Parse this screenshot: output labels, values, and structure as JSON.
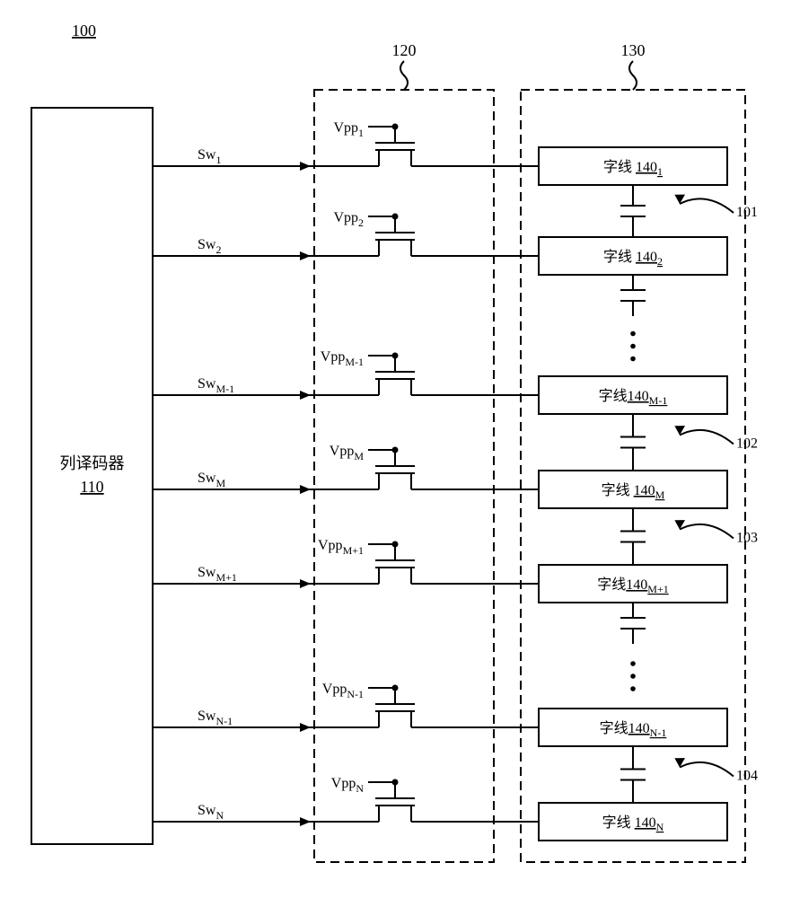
{
  "figure_ref": "100",
  "decoder": {
    "label_line1": "列译码器",
    "label_line2": "110"
  },
  "group120_label": "120",
  "group130_label": "130",
  "stroke": "#000000",
  "stroke_width": 2,
  "dash": "10,6",
  "font_family": "Times New Roman, serif",
  "rows": [
    {
      "sw": "Sw",
      "sw_sub": "1",
      "vpp": "Vpp",
      "vpp_sub": "1",
      "wl_prefix": "字线 ",
      "wl_num": "140",
      "wl_sub": "1",
      "cap_ref": "101"
    },
    {
      "sw": "Sw",
      "sw_sub": "2",
      "vpp": "Vpp",
      "vpp_sub": "2",
      "wl_prefix": "字线 ",
      "wl_num": "140",
      "wl_sub": "2",
      "cap_ref": ""
    },
    {
      "sw": "Sw",
      "sw_sub": "M-1",
      "vpp": "Vpp",
      "vpp_sub": "M-1",
      "wl_prefix": "字线",
      "wl_num": "140",
      "wl_sub": "M-1",
      "cap_ref": "102"
    },
    {
      "sw": "Sw",
      "sw_sub": "M",
      "vpp": "Vpp",
      "vpp_sub": "M",
      "wl_prefix": "字线 ",
      "wl_num": "140",
      "wl_sub": "M",
      "cap_ref": "103"
    },
    {
      "sw": "Sw",
      "sw_sub": "M+1",
      "vpp": "Vpp",
      "vpp_sub": "M+1",
      "wl_prefix": "字线",
      "wl_num": "140",
      "wl_sub": "M+1",
      "cap_ref": ""
    },
    {
      "sw": "Sw",
      "sw_sub": "N-1",
      "vpp": "Vpp",
      "vpp_sub": "N-1",
      "wl_prefix": "字线",
      "wl_num": "140",
      "wl_sub": "N-1",
      "cap_ref": "104"
    },
    {
      "sw": "Sw",
      "sw_sub": "N",
      "vpp": "Vpp",
      "vpp_sub": "N",
      "wl_prefix": "字线 ",
      "wl_num": "140",
      "wl_sub": "N",
      "cap_ref": ""
    }
  ],
  "vdots_after": [
    1,
    4
  ],
  "colors": {
    "bg": "#ffffff",
    "line": "#000000"
  }
}
